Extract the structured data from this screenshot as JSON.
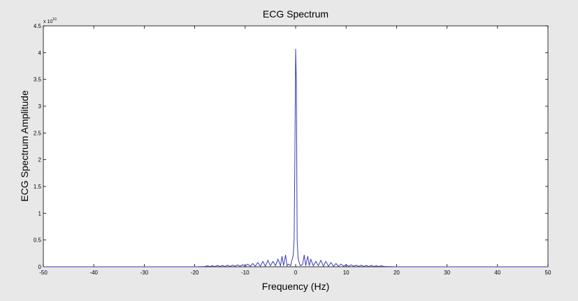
{
  "chart_data": {
    "type": "line",
    "title": "ECG Spectrum",
    "xlabel": "Frequency (Hz)",
    "ylabel": "ECG Spectrum Amplitude",
    "y_exponent_label": "x 10",
    "y_exponent_power": "10",
    "y_scale": 10000000000,
    "xlim": [
      -50,
      50
    ],
    "ylim": [
      0,
      4.5
    ],
    "x_ticks": [
      -50,
      -40,
      -30,
      -20,
      -10,
      0,
      10,
      20,
      30,
      40,
      50
    ],
    "y_ticks": [
      0,
      0.5,
      1,
      1.5,
      2,
      2.5,
      3,
      3.5,
      4,
      4.5
    ],
    "y_tick_labels": [
      "0",
      "0.5",
      "1",
      "1.5",
      "2",
      "2.5",
      "3",
      "3.5",
      "4",
      "4.5"
    ],
    "grid": false,
    "colors": {
      "line": "#3b3bb3",
      "plot_background": "#ffffff",
      "figure_background": "#e8e8e8"
    },
    "series": [
      {
        "x": [
          -50,
          -20,
          -18,
          -17.5,
          -17,
          -16.5,
          -16,
          -15.5,
          -15,
          -14.5,
          -14,
          -13.5,
          -13,
          -12.5,
          -12,
          -11.5,
          -11,
          -10.5,
          -10,
          -9.5,
          -9,
          -8.5,
          -8,
          -7.5,
          -7,
          -6.5,
          -6,
          -5.5,
          -5,
          -4.5,
          -4,
          -3.5,
          -3,
          -2.7,
          -2.4,
          -2,
          -1.7,
          -1.4,
          -1,
          -0.8,
          -0.5,
          -0.3,
          -0.15,
          0,
          0.15,
          0.3,
          0.5,
          0.8,
          1,
          1.4,
          1.7,
          2,
          2.4,
          2.7,
          3,
          3.5,
          4,
          4.5,
          5,
          5.5,
          6,
          6.5,
          7,
          7.5,
          8,
          8.5,
          9,
          9.5,
          10,
          10.5,
          11,
          11.5,
          12,
          12.5,
          13,
          13.5,
          14,
          14.5,
          15,
          15.5,
          16,
          16.5,
          17,
          17.5,
          18,
          20,
          50
        ],
        "y": [
          0,
          0,
          0.005,
          0.02,
          0.005,
          0.02,
          0.005,
          0.025,
          0.005,
          0.025,
          0.005,
          0.03,
          0.005,
          0.03,
          0.01,
          0.035,
          0.01,
          0.04,
          0.01,
          0.05,
          0.01,
          0.06,
          0.01,
          0.08,
          0.01,
          0.1,
          0.01,
          0.12,
          0.02,
          0.1,
          0.02,
          0.14,
          0.02,
          0.2,
          0.02,
          0.22,
          0.02,
          0.05,
          0.02,
          0.1,
          0.2,
          0.5,
          2.05,
          4.07,
          3.4,
          0.5,
          0.15,
          0.05,
          0.02,
          0.05,
          0.22,
          0.02,
          0.2,
          0.02,
          0.14,
          0.02,
          0.1,
          0.02,
          0.12,
          0.01,
          0.1,
          0.01,
          0.08,
          0.01,
          0.06,
          0.01,
          0.05,
          0.01,
          0.04,
          0.01,
          0.035,
          0.01,
          0.03,
          0.005,
          0.03,
          0.005,
          0.025,
          0.005,
          0.025,
          0.005,
          0.02,
          0.005,
          0.02,
          0.005,
          0.005,
          0,
          0
        ]
      }
    ]
  }
}
